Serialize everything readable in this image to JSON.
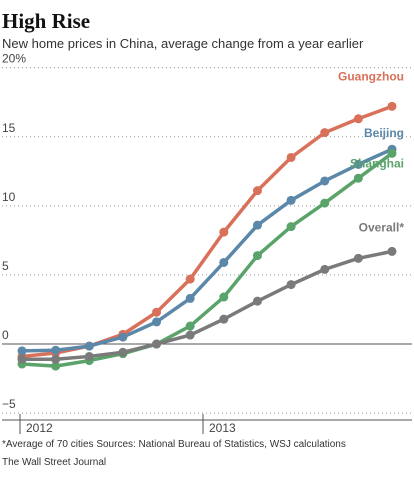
{
  "chart_data": {
    "type": "line",
    "title": "High Rise",
    "subtitle": "New home prices in China, average change from a year earlier",
    "categories": [
      null,
      null,
      null,
      null,
      null,
      null,
      null,
      null,
      null,
      null,
      null,
      null
    ],
    "year_labels": [
      "2012",
      "2013"
    ],
    "series": [
      {
        "name": "Guangzhou",
        "color": "#d9705a",
        "values": [
          -0.9,
          -0.65,
          -0.15,
          0.7,
          2.3,
          4.7,
          8.1,
          11.1,
          13.5,
          15.3,
          16.3,
          17.2
        ]
      },
      {
        "name": "Beijing",
        "color": "#5b87a8",
        "values": [
          -0.5,
          -0.45,
          -0.15,
          0.5,
          1.6,
          3.3,
          5.9,
          8.6,
          10.4,
          11.8,
          13.0,
          14.1
        ]
      },
      {
        "name": "Shanghai",
        "color": "#5aa36a",
        "values": [
          -1.45,
          -1.6,
          -1.2,
          -0.7,
          0,
          1.3,
          3.4,
          6.4,
          8.5,
          10.2,
          12.0,
          13.8
        ]
      },
      {
        "name": "Overall*",
        "color": "#7a7a7a",
        "values": [
          -1.1,
          -1.1,
          -0.9,
          -0.6,
          0,
          0.65,
          1.8,
          3.1,
          4.3,
          5.4,
          6.2,
          6.7
        ]
      }
    ],
    "ylim": [
      -5.5,
      20.7
    ],
    "yticks": [
      {
        "value": 20,
        "label": "20%"
      },
      15,
      10,
      5,
      0,
      {
        "value": -5,
        "label": "−5"
      }
    ],
    "grid": true,
    "footnote": "*Average of 70 cities    Sources: National Bureau of Statistics, WSJ calculations",
    "source": "The Wall Street Journal"
  }
}
